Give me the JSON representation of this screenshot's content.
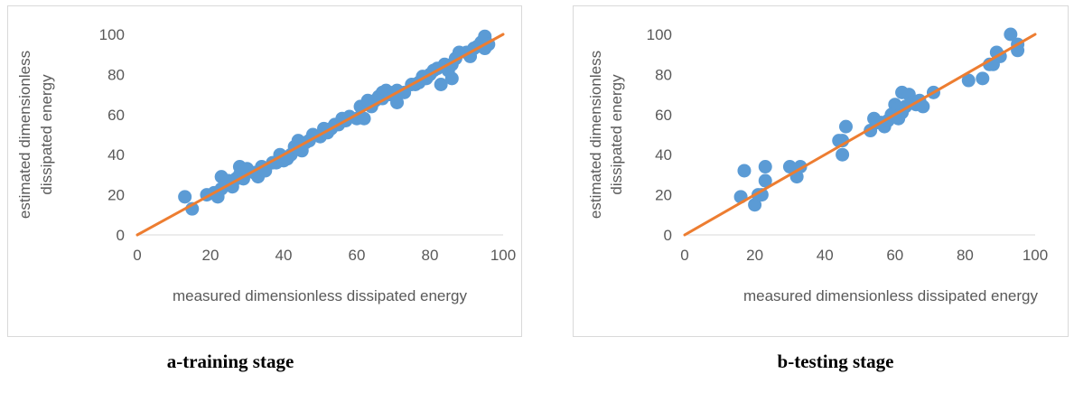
{
  "chart_data": [
    {
      "type": "scatter",
      "xlabel": "measured dimensionless dissipated energy",
      "ylabel": [
        "estimated dimensionless",
        "dissipated energy"
      ],
      "xlim": [
        0,
        100
      ],
      "ylim": [
        0,
        100
      ],
      "xticks": [
        "0",
        "20",
        "40",
        "60",
        "80",
        "100"
      ],
      "yticks": [
        "0",
        "20",
        "40",
        "60",
        "80",
        "100"
      ],
      "grid": false,
      "point_color": "#5b9bd5",
      "line_color": "#ed7d31",
      "reference_line": [
        [
          0,
          0
        ],
        [
          100,
          100
        ]
      ],
      "points": [
        [
          13,
          19
        ],
        [
          15,
          13
        ],
        [
          19,
          20
        ],
        [
          21,
          21
        ],
        [
          22,
          19
        ],
        [
          23,
          23
        ],
        [
          23,
          29
        ],
        [
          24,
          25
        ],
        [
          25,
          27
        ],
        [
          26,
          24
        ],
        [
          27,
          28
        ],
        [
          28,
          34
        ],
        [
          28,
          30
        ],
        [
          29,
          28
        ],
        [
          30,
          33
        ],
        [
          32,
          31
        ],
        [
          33,
          29
        ],
        [
          34,
          34
        ],
        [
          35,
          32
        ],
        [
          37,
          36
        ],
        [
          38,
          36
        ],
        [
          39,
          40
        ],
        [
          40,
          37
        ],
        [
          41,
          38
        ],
        [
          42,
          40
        ],
        [
          43,
          44
        ],
        [
          44,
          47
        ],
        [
          45,
          42
        ],
        [
          46,
          46
        ],
        [
          47,
          47
        ],
        [
          48,
          50
        ],
        [
          50,
          49
        ],
        [
          51,
          53
        ],
        [
          52,
          51
        ],
        [
          53,
          53
        ],
        [
          54,
          55
        ],
        [
          55,
          55
        ],
        [
          56,
          58
        ],
        [
          57,
          57
        ],
        [
          58,
          59
        ],
        [
          60,
          58
        ],
        [
          61,
          64
        ],
        [
          61,
          59
        ],
        [
          62,
          58
        ],
        [
          63,
          67
        ],
        [
          64,
          64
        ],
        [
          65,
          67
        ],
        [
          66,
          69
        ],
        [
          67,
          71
        ],
        [
          67,
          68
        ],
        [
          68,
          72
        ],
        [
          69,
          70
        ],
        [
          70,
          71
        ],
        [
          71,
          66
        ],
        [
          71,
          72
        ],
        [
          73,
          71
        ],
        [
          75,
          75
        ],
        [
          76,
          75
        ],
        [
          77,
          76
        ],
        [
          78,
          79
        ],
        [
          79,
          78
        ],
        [
          80,
          80
        ],
        [
          81,
          82
        ],
        [
          82,
          83
        ],
        [
          83,
          75
        ],
        [
          84,
          85
        ],
        [
          85,
          82
        ],
        [
          86,
          85
        ],
        [
          86,
          78
        ],
        [
          87,
          88
        ],
        [
          88,
          91
        ],
        [
          90,
          91
        ],
        [
          91,
          89
        ],
        [
          92,
          93
        ],
        [
          93,
          94
        ],
        [
          94,
          96
        ],
        [
          95,
          99
        ],
        [
          95,
          93
        ],
        [
          96,
          95
        ]
      ],
      "caption": "a-training stage"
    },
    {
      "type": "scatter",
      "xlabel": "measured dimensionless dissipated energy",
      "ylabel": [
        "estimated dimensionless",
        "dissipated energy"
      ],
      "xlim": [
        0,
        100
      ],
      "ylim": [
        0,
        100
      ],
      "xticks": [
        "0",
        "20",
        "40",
        "60",
        "80",
        "100"
      ],
      "yticks": [
        "0",
        "20",
        "40",
        "60",
        "80",
        "100"
      ],
      "grid": false,
      "point_color": "#5b9bd5",
      "line_color": "#ed7d31",
      "reference_line": [
        [
          0,
          0
        ],
        [
          100,
          100
        ]
      ],
      "points": [
        [
          16,
          19
        ],
        [
          17,
          32
        ],
        [
          20,
          15
        ],
        [
          21,
          20
        ],
        [
          22,
          20
        ],
        [
          23,
          27
        ],
        [
          23,
          34
        ],
        [
          30,
          34
        ],
        [
          32,
          29
        ],
        [
          33,
          34
        ],
        [
          44,
          47
        ],
        [
          45,
          47
        ],
        [
          45,
          40
        ],
        [
          46,
          54
        ],
        [
          53,
          52
        ],
        [
          54,
          58
        ],
        [
          55,
          56
        ],
        [
          56,
          56
        ],
        [
          57,
          54
        ],
        [
          58,
          57
        ],
        [
          59,
          60
        ],
        [
          60,
          65
        ],
        [
          60,
          61
        ],
        [
          61,
          58
        ],
        [
          61,
          63
        ],
        [
          62,
          61
        ],
        [
          62,
          71
        ],
        [
          63,
          64
        ],
        [
          64,
          70
        ],
        [
          65,
          66
        ],
        [
          66,
          65
        ],
        [
          67,
          67
        ],
        [
          68,
          64
        ],
        [
          71,
          71
        ],
        [
          81,
          77
        ],
        [
          85,
          78
        ],
        [
          87,
          85
        ],
        [
          88,
          85
        ],
        [
          89,
          91
        ],
        [
          90,
          89
        ],
        [
          93,
          100
        ],
        [
          95,
          95
        ],
        [
          95,
          92
        ]
      ],
      "caption": "b-testing stage"
    }
  ]
}
